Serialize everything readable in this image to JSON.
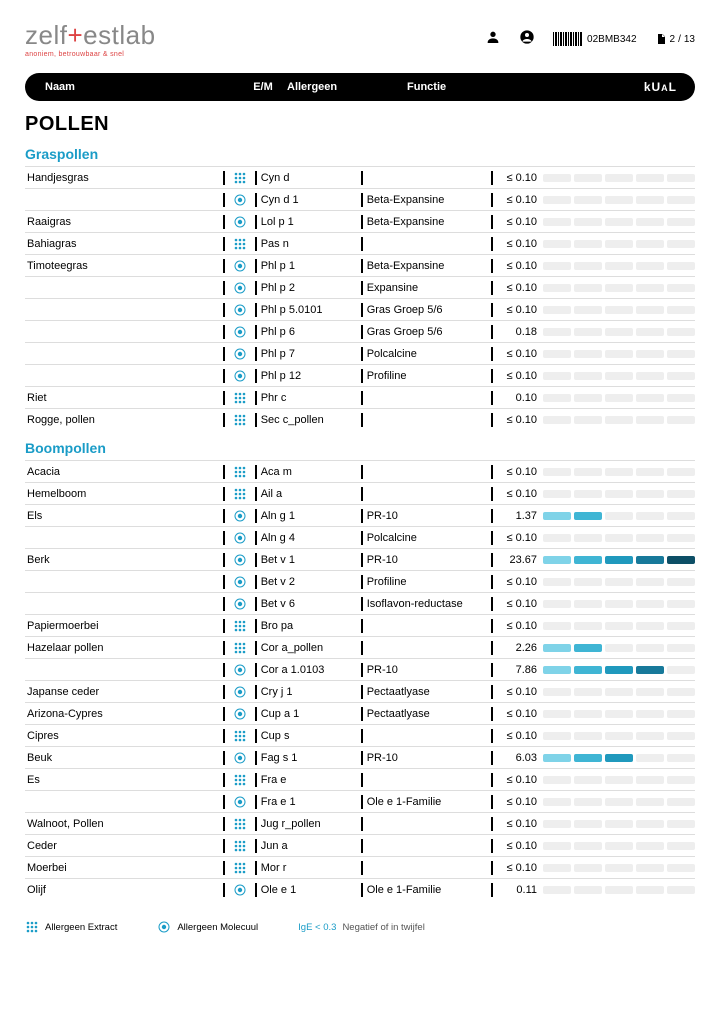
{
  "logo": {
    "pre": "zelf",
    "plus": "+",
    "post": "estlab",
    "sub": "anoniem, betrouwbaar & snel"
  },
  "header": {
    "barcode_id": "02BMB342",
    "page_current": "2",
    "page_total": "13"
  },
  "columns": {
    "name": "Naam",
    "em": "E/M",
    "allergen": "Allergeen",
    "function": "Functie",
    "kual": "kUAL"
  },
  "main_title": "POLLEN",
  "bar_palette": [
    "#7fd3e8",
    "#3fb5d4",
    "#2099bd",
    "#17799a",
    "#0d4f66"
  ],
  "bar_inactive": "#eeeeee",
  "sections": [
    {
      "title": "Graspollen",
      "groups": [
        {
          "name": "Handjesgras",
          "rows": [
            {
              "em": "E",
              "alg": "Cyn d",
              "func": "",
              "val": "≤ 0.10",
              "lvl": 0
            },
            {
              "em": "M",
              "alg": "Cyn d 1",
              "func": "Beta-Expansine",
              "val": "≤ 0.10",
              "lvl": 0
            }
          ]
        },
        {
          "name": "Raaigras",
          "rows": [
            {
              "em": "M",
              "alg": "Lol p 1",
              "func": "Beta-Expansine",
              "val": "≤ 0.10",
              "lvl": 0
            }
          ]
        },
        {
          "name": "Bahiagras",
          "rows": [
            {
              "em": "E",
              "alg": "Pas n",
              "func": "",
              "val": "≤ 0.10",
              "lvl": 0
            }
          ]
        },
        {
          "name": "Timoteegras",
          "rows": [
            {
              "em": "M",
              "alg": "Phl p 1",
              "func": "Beta-Expansine",
              "val": "≤ 0.10",
              "lvl": 0
            },
            {
              "em": "M",
              "alg": "Phl p 2",
              "func": "Expansine",
              "val": "≤ 0.10",
              "lvl": 0
            },
            {
              "em": "M",
              "alg": "Phl p 5.0101",
              "func": "Gras Groep 5/6",
              "val": "≤ 0.10",
              "lvl": 0
            },
            {
              "em": "M",
              "alg": "Phl p 6",
              "func": "Gras Groep 5/6",
              "val": "0.18",
              "lvl": 0
            },
            {
              "em": "M",
              "alg": "Phl p 7",
              "func": "Polcalcine",
              "val": "≤ 0.10",
              "lvl": 0
            },
            {
              "em": "M",
              "alg": "Phl p 12",
              "func": "Profiline",
              "val": "≤ 0.10",
              "lvl": 0
            }
          ]
        },
        {
          "name": "Riet",
          "rows": [
            {
              "em": "E",
              "alg": "Phr c",
              "func": "",
              "val": "0.10",
              "lvl": 0
            }
          ]
        },
        {
          "name": "Rogge, pollen",
          "rows": [
            {
              "em": "E",
              "alg": "Sec c_pollen",
              "func": "",
              "val": "≤ 0.10",
              "lvl": 0
            }
          ]
        }
      ]
    },
    {
      "title": "Boompollen",
      "groups": [
        {
          "name": "Acacia",
          "rows": [
            {
              "em": "E",
              "alg": "Aca m",
              "func": "",
              "val": "≤ 0.10",
              "lvl": 0
            }
          ]
        },
        {
          "name": "Hemelboom",
          "rows": [
            {
              "em": "E",
              "alg": "Ail a",
              "func": "",
              "val": "≤ 0.10",
              "lvl": 0
            }
          ]
        },
        {
          "name": "Els",
          "rows": [
            {
              "em": "M",
              "alg": "Aln g 1",
              "func": "PR-10",
              "val": "1.37",
              "lvl": 2
            },
            {
              "em": "M",
              "alg": "Aln g 4",
              "func": "Polcalcine",
              "val": "≤ 0.10",
              "lvl": 0
            }
          ]
        },
        {
          "name": "Berk",
          "rows": [
            {
              "em": "M",
              "alg": "Bet v 1",
              "func": "PR-10",
              "val": "23.67",
              "lvl": 5
            },
            {
              "em": "M",
              "alg": "Bet v 2",
              "func": "Profiline",
              "val": "≤ 0.10",
              "lvl": 0
            },
            {
              "em": "M",
              "alg": "Bet v 6",
              "func": "Isoflavon-reductase",
              "val": "≤ 0.10",
              "lvl": 0
            }
          ]
        },
        {
          "name": "Papiermoerbei",
          "rows": [
            {
              "em": "E",
              "alg": "Bro pa",
              "func": "",
              "val": "≤ 0.10",
              "lvl": 0
            }
          ]
        },
        {
          "name": "Hazelaar pollen",
          "rows": [
            {
              "em": "E",
              "alg": "Cor a_pollen",
              "func": "",
              "val": "2.26",
              "lvl": 2
            },
            {
              "em": "M",
              "alg": "Cor a 1.0103",
              "func": "PR-10",
              "val": "7.86",
              "lvl": 4
            }
          ]
        },
        {
          "name": "Japanse ceder",
          "rows": [
            {
              "em": "M",
              "alg": "Cry j 1",
              "func": "Pectaatlyase",
              "val": "≤ 0.10",
              "lvl": 0
            }
          ]
        },
        {
          "name": "Arizona-Cypres",
          "rows": [
            {
              "em": "M",
              "alg": "Cup a 1",
              "func": "Pectaatlyase",
              "val": "≤ 0.10",
              "lvl": 0
            }
          ]
        },
        {
          "name": "Cipres",
          "rows": [
            {
              "em": "E",
              "alg": "Cup s",
              "func": "",
              "val": "≤ 0.10",
              "lvl": 0
            }
          ]
        },
        {
          "name": "Beuk",
          "rows": [
            {
              "em": "M",
              "alg": "Fag s 1",
              "func": "PR-10",
              "val": "6.03",
              "lvl": 3
            }
          ]
        },
        {
          "name": "Es",
          "rows": [
            {
              "em": "E",
              "alg": "Fra e",
              "func": "",
              "val": "≤ 0.10",
              "lvl": 0
            },
            {
              "em": "M",
              "alg": "Fra e 1",
              "func": "Ole e 1-Familie",
              "val": "≤ 0.10",
              "lvl": 0
            }
          ]
        },
        {
          "name": "Walnoot, Pollen",
          "rows": [
            {
              "em": "E",
              "alg": "Jug r_pollen",
              "func": "",
              "val": "≤ 0.10",
              "lvl": 0
            }
          ]
        },
        {
          "name": "Ceder",
          "rows": [
            {
              "em": "E",
              "alg": "Jun a",
              "func": "",
              "val": "≤ 0.10",
              "lvl": 0
            }
          ]
        },
        {
          "name": "Moerbei",
          "rows": [
            {
              "em": "E",
              "alg": "Mor r",
              "func": "",
              "val": "≤ 0.10",
              "lvl": 0
            }
          ]
        },
        {
          "name": "Olijf",
          "rows": [
            {
              "em": "M",
              "alg": "Ole e 1",
              "func": "Ole e 1-Familie",
              "val": "0.11",
              "lvl": 0
            }
          ]
        }
      ]
    }
  ],
  "legend": {
    "extract": "Allergeen Extract",
    "molecule": "Allergeen Molecuul",
    "ige_label": "IgE < 0.3",
    "ige_text": "Negatief of in twijfel"
  }
}
